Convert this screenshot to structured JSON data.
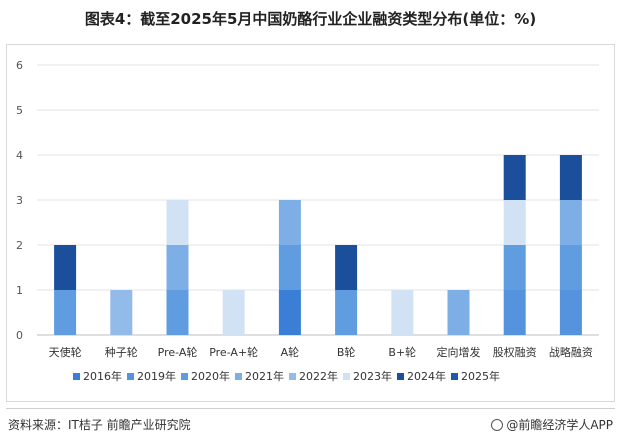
{
  "title": "图表4：截至2025年5月中国奶酪行业企业融资类型分布(单位：%)",
  "footer": {
    "source": "资料来源：IT桔子 前瞻产业研究院",
    "brand": "@前瞻经济学人APP"
  },
  "colors": {
    "2016年": "#3a7fd5",
    "2019年": "#5593de",
    "2020年": "#5f9ce0",
    "2021年": "#7eaee6",
    "2022年": "#93bbea",
    "2023年": "#d2e2f5",
    "2024年": "#1b4f9c",
    "2025年": "#1f5aa8"
  },
  "chart_data": {
    "type": "bar",
    "stacked": true,
    "categories": [
      "天使轮",
      "种子轮",
      "Pre-A轮",
      "Pre-A+轮",
      "A轮",
      "B轮",
      "B+轮",
      "定向增发",
      "股权融资",
      "战略融资"
    ],
    "ylim": [
      0,
      6
    ],
    "yticks": [
      0,
      1,
      2,
      3,
      4,
      5,
      6
    ],
    "grid": true,
    "legend": "bottom",
    "series": [
      {
        "name": "2016年",
        "values": [
          0,
          0,
          0,
          0,
          1,
          0,
          0,
          0,
          0,
          0
        ]
      },
      {
        "name": "2019年",
        "values": [
          0,
          0,
          0,
          0,
          0,
          0,
          0,
          0,
          1,
          1
        ]
      },
      {
        "name": "2020年",
        "values": [
          1,
          0,
          1,
          0,
          1,
          1,
          0,
          0,
          1,
          1
        ]
      },
      {
        "name": "2021年",
        "values": [
          0,
          0,
          1,
          0,
          1,
          0,
          0,
          1,
          0,
          1
        ]
      },
      {
        "name": "2022年",
        "values": [
          0,
          1,
          0,
          0,
          0,
          0,
          0,
          0,
          0,
          0
        ]
      },
      {
        "name": "2023年",
        "values": [
          0,
          0,
          1,
          1,
          0,
          0,
          1,
          0,
          1,
          0
        ]
      },
      {
        "name": "2024年",
        "values": [
          1,
          0,
          0,
          0,
          0,
          1,
          0,
          0,
          1,
          1
        ]
      },
      {
        "name": "2025年",
        "values": [
          0,
          0,
          0,
          0,
          0,
          0,
          0,
          0,
          0,
          0
        ]
      }
    ]
  }
}
